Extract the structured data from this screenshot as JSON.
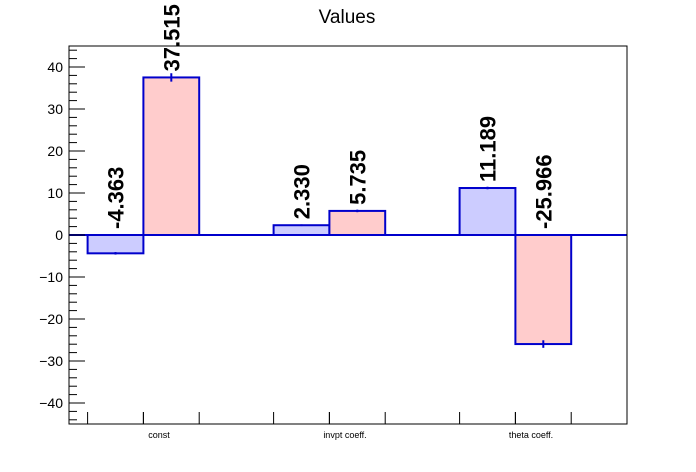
{
  "chart_data": {
    "type": "bar",
    "title": "Values",
    "categories": [
      "const",
      "invpt coeff.",
      "theta coeff."
    ],
    "series": [
      {
        "values": [
          -4.363,
          2.33,
          11.189
        ],
        "errors": [
          0.3,
          0.2,
          0.3
        ],
        "fill": "#ccccff",
        "stroke": "#0000cc"
      },
      {
        "values": [
          37.515,
          5.735,
          -25.966
        ],
        "errors": [
          1.0,
          0.3,
          0.9
        ],
        "fill": "#ffcccc",
        "stroke": "#0000cc"
      }
    ],
    "value_labels": [
      [
        "-4.363",
        "2.330",
        "11.189"
      ],
      [
        "37.515",
        "5.735",
        "-25.966"
      ]
    ],
    "ylim": [
      -45,
      45
    ],
    "yticks": [
      -40,
      -30,
      -20,
      -10,
      0,
      10,
      20,
      30,
      40
    ],
    "ytick_labels": [
      "−40",
      "−30",
      "−20",
      "−10",
      "0",
      "10",
      "20",
      "30",
      "40"
    ],
    "grid": false,
    "zero_line_color": "#0000cc"
  }
}
